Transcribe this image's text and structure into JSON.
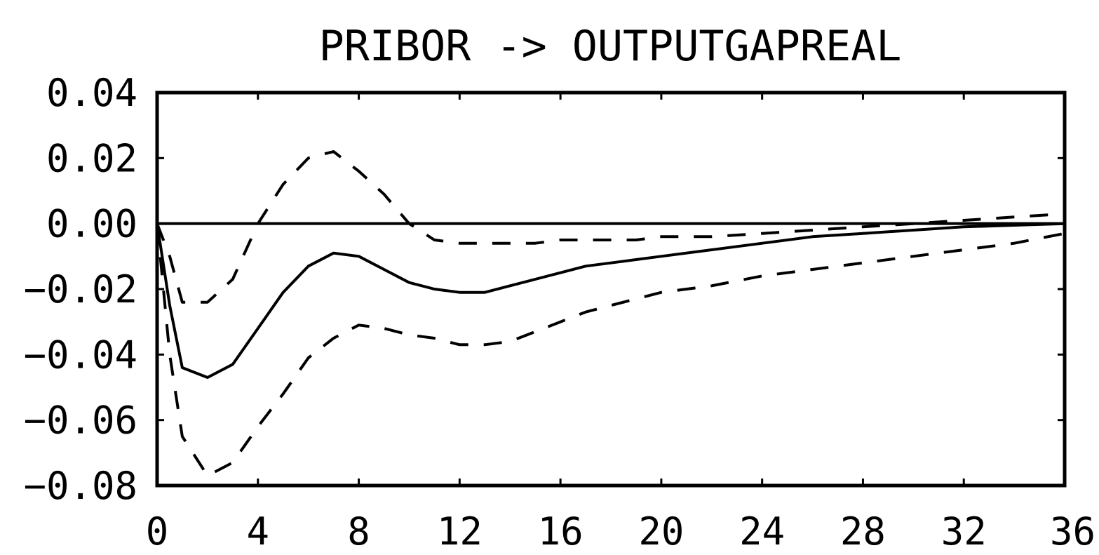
{
  "chart_data": {
    "type": "line",
    "title": "PRIBOR -> OUTPUTGAPREAL",
    "xlabel": "",
    "ylabel": "",
    "xlim": [
      0,
      36
    ],
    "ylim": [
      -0.08,
      0.04
    ],
    "x_ticks": [
      {
        "value": 0,
        "label": "0"
      },
      {
        "value": 4,
        "label": "4"
      },
      {
        "value": 8,
        "label": "8"
      },
      {
        "value": 12,
        "label": "12"
      },
      {
        "value": 16,
        "label": "16"
      },
      {
        "value": 20,
        "label": "20"
      },
      {
        "value": 24,
        "label": "24"
      },
      {
        "value": 28,
        "label": "28"
      },
      {
        "value": 32,
        "label": "32"
      },
      {
        "value": 36,
        "label": "36"
      }
    ],
    "y_ticks": [
      {
        "value": 0.04,
        "label": "0.04"
      },
      {
        "value": 0.02,
        "label": "0.02"
      },
      {
        "value": 0.0,
        "label": "0.00"
      },
      {
        "value": -0.02,
        "label": "−0.02"
      },
      {
        "value": -0.04,
        "label": "−0.04"
      },
      {
        "value": -0.06,
        "label": "−0.06"
      },
      {
        "value": -0.08,
        "label": "−0.08"
      }
    ],
    "zero_line": 0,
    "grid": false,
    "x": [
      0,
      0.5,
      1,
      2,
      3,
      4,
      5,
      6,
      7,
      8,
      9,
      10,
      11,
      12,
      13,
      14,
      15,
      16,
      17,
      18,
      19,
      20,
      22,
      24,
      26,
      28,
      30,
      32,
      34,
      36
    ],
    "series": [
      {
        "role": "response",
        "style": "solid",
        "values": [
          0.0,
          -0.025,
          -0.044,
          -0.047,
          -0.043,
          -0.032,
          -0.021,
          -0.013,
          -0.009,
          -0.01,
          -0.014,
          -0.018,
          -0.02,
          -0.021,
          -0.021,
          -0.019,
          -0.017,
          -0.015,
          -0.013,
          -0.012,
          -0.011,
          -0.01,
          -0.008,
          -0.006,
          -0.004,
          -0.003,
          -0.002,
          -0.001,
          -0.0005,
          0.0
        ]
      },
      {
        "role": "upper-band",
        "style": "dashed",
        "values": [
          0.0,
          -0.01,
          -0.024,
          -0.024,
          -0.017,
          0.0,
          0.012,
          0.02,
          0.022,
          0.016,
          0.009,
          0.0,
          -0.005,
          -0.006,
          -0.006,
          -0.006,
          -0.006,
          -0.005,
          -0.005,
          -0.005,
          -0.005,
          -0.004,
          -0.004,
          -0.003,
          -0.002,
          -0.001,
          0.0,
          0.001,
          0.002,
          0.003
        ]
      },
      {
        "role": "lower-band",
        "style": "dashed",
        "values": [
          0.0,
          -0.04,
          -0.065,
          -0.077,
          -0.073,
          -0.062,
          -0.052,
          -0.041,
          -0.035,
          -0.031,
          -0.032,
          -0.034,
          -0.035,
          -0.037,
          -0.037,
          -0.036,
          -0.033,
          -0.03,
          -0.027,
          -0.025,
          -0.023,
          -0.021,
          -0.019,
          -0.016,
          -0.014,
          -0.012,
          -0.01,
          -0.008,
          -0.006,
          -0.003
        ]
      }
    ]
  }
}
